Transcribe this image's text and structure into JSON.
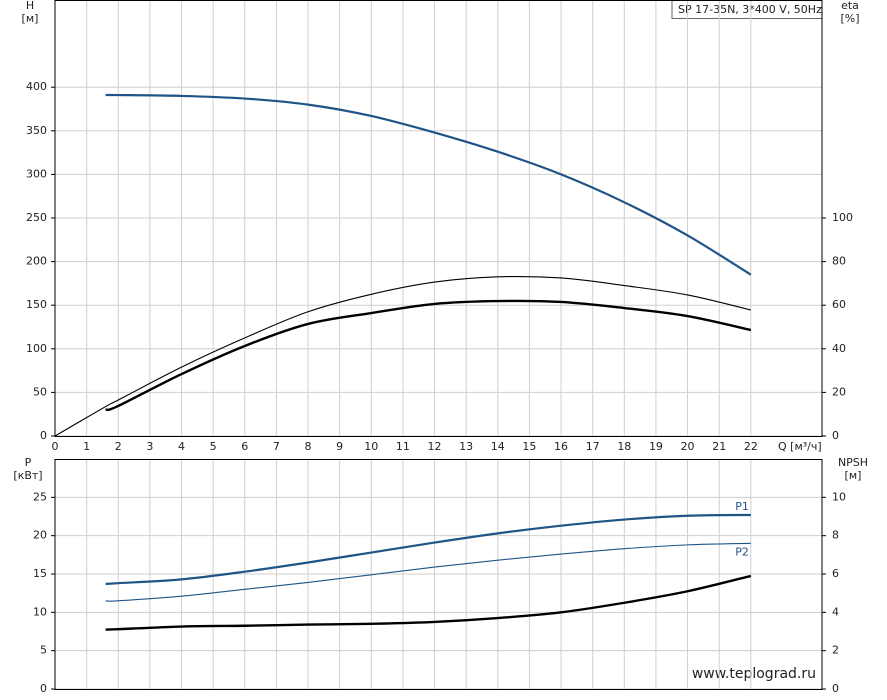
{
  "chart_data": [
    {
      "type": "line",
      "title": "SP 17-35N, 3*400 V, 50Hz",
      "ylabel": "H",
      "yunit": "[м]",
      "y2label": "eta",
      "y2unit": "[%]",
      "xlabel": "Q [м³/ч]",
      "x": [
        0,
        1.6,
        2,
        4,
        6,
        8,
        10,
        12,
        14,
        16,
        18,
        20,
        22
      ],
      "xlim": [
        0,
        24.25
      ],
      "xticks": [
        0,
        1,
        2,
        3,
        4,
        5,
        6,
        7,
        8,
        9,
        10,
        11,
        12,
        13,
        14,
        15,
        16,
        17,
        18,
        19,
        20,
        21,
        22
      ],
      "ylim": [
        0,
        500
      ],
      "yticks": [
        0,
        50,
        100,
        150,
        200,
        250,
        300,
        350,
        400
      ],
      "y2lim": [
        0,
        200
      ],
      "y2ticks": [
        0,
        20,
        40,
        60,
        80,
        100
      ],
      "grid": true,
      "series": [
        {
          "color": "#1f5487",
          "linewidth": 2.2,
          "values": [
            null,
            391,
            391,
            390,
            387,
            380,
            367,
            348,
            326,
            300,
            268,
            230,
            185
          ]
        },
        {
          "color": "#000000",
          "linewidth": 1.1,
          "axis": "y2",
          "values": [
            0,
            13.5,
            16.5,
            31.6,
            45,
            57,
            65,
            70.6,
            73,
            72.5,
            69,
            64.7,
            57.8
          ]
        },
        {
          "color": "#000000",
          "linewidth": 2.4,
          "axis": "y2",
          "values": [
            null,
            12,
            13.8,
            28.4,
            41.3,
            51.4,
            56.4,
            60.6,
            61.9,
            61.5,
            58.7,
            55,
            48.6
          ]
        }
      ]
    },
    {
      "type": "line",
      "ylabel": "P",
      "yunit": "[кВт]",
      "y2label": "NPSH",
      "y2unit": "[м]",
      "x": [
        0,
        1.6,
        2,
        4,
        6,
        8,
        10,
        12,
        14,
        16,
        18,
        20,
        22
      ],
      "xlim": [
        0,
        24.25
      ],
      "ylim": [
        0,
        30
      ],
      "yticks": [
        0,
        5,
        10,
        15,
        20,
        25
      ],
      "y2lim": [
        0,
        12
      ],
      "y2ticks": [
        0,
        2,
        4,
        6,
        8,
        10
      ],
      "grid": true,
      "series": [
        {
          "name": "P1",
          "color": "#1f5487",
          "linewidth": 2.2,
          "values": [
            null,
            13.7,
            13.8,
            14.3,
            15.3,
            16.5,
            17.8,
            19.1,
            20.3,
            21.3,
            22.1,
            22.6,
            22.7
          ]
        },
        {
          "name": "P2",
          "color": "#1f5487",
          "linewidth": 1.1,
          "values": [
            null,
            11.5,
            11.5,
            12.1,
            13,
            13.9,
            14.9,
            15.9,
            16.8,
            17.6,
            18.3,
            18.8,
            19.0
          ]
        },
        {
          "color": "#000000",
          "linewidth": 2.4,
          "axis": "y2",
          "values": [
            null,
            3.1,
            3.12,
            3.26,
            3.3,
            3.36,
            3.4,
            3.5,
            3.7,
            4.0,
            4.5,
            5.1,
            5.9
          ]
        }
      ]
    }
  ],
  "watermark": "www.teplograd.ru"
}
